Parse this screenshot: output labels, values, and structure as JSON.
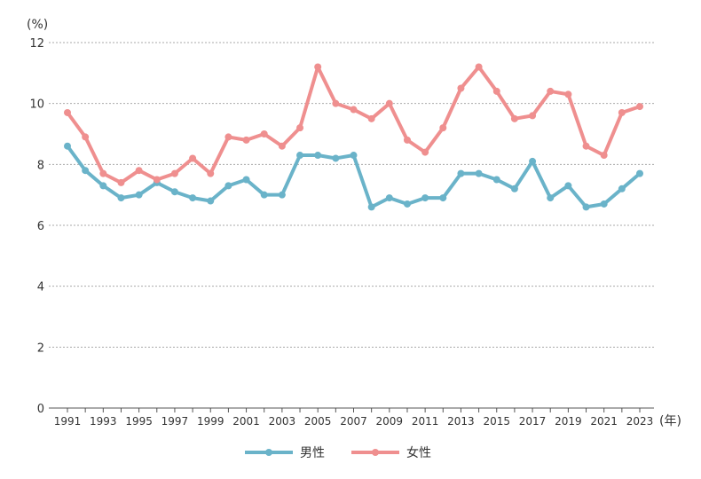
{
  "chart_data": {
    "type": "line",
    "title": "",
    "ylabel": "(%)",
    "xlabel": "(年)",
    "ylim": [
      0,
      12
    ],
    "yticks": [
      0,
      2,
      4,
      6,
      8,
      10,
      12
    ],
    "grid": true,
    "legend_position": "bottom-center",
    "x": [
      1991,
      1992,
      1993,
      1994,
      1995,
      1996,
      1997,
      1998,
      1999,
      2000,
      2001,
      2002,
      2003,
      2004,
      2005,
      2006,
      2007,
      2008,
      2009,
      2010,
      2011,
      2012,
      2013,
      2014,
      2015,
      2016,
      2017,
      2018,
      2019,
      2020,
      2021,
      2022,
      2023
    ],
    "xtick_labels": [
      "1991",
      "1993",
      "1995",
      "1997",
      "1999",
      "2001",
      "2003",
      "2005",
      "2007",
      "2009",
      "2011",
      "2013",
      "2015",
      "2017",
      "2019",
      "2021",
      "2023"
    ],
    "series": [
      {
        "name": "男性",
        "color": "#6ab3c9",
        "values": [
          8.6,
          7.8,
          7.3,
          6.9,
          7.0,
          7.4,
          7.1,
          6.9,
          6.8,
          7.3,
          7.5,
          7.0,
          7.0,
          8.3,
          8.3,
          8.2,
          8.3,
          6.6,
          6.9,
          6.7,
          6.9,
          6.9,
          7.7,
          7.7,
          7.5,
          7.2,
          8.1,
          6.9,
          7.3,
          6.6,
          6.7,
          7.2,
          7.7
        ]
      },
      {
        "name": "女性",
        "color": "#ef8f8f",
        "values": [
          9.7,
          8.9,
          7.7,
          7.4,
          7.8,
          7.5,
          7.7,
          8.2,
          7.7,
          8.9,
          8.8,
          9.0,
          8.6,
          9.2,
          11.2,
          10.0,
          9.8,
          9.5,
          10.0,
          8.8,
          8.4,
          9.2,
          10.5,
          11.2,
          10.4,
          9.5,
          9.6,
          10.4,
          10.3,
          8.6,
          8.3,
          9.7,
          9.9
        ]
      }
    ]
  }
}
